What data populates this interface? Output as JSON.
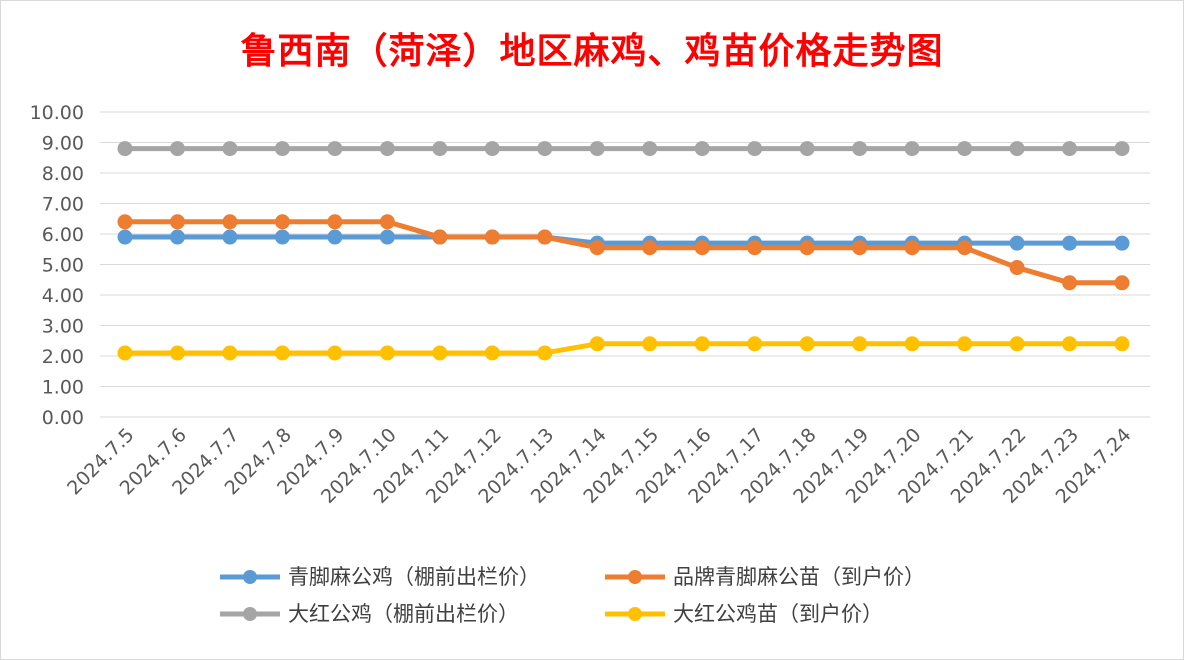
{
  "chart_data": {
    "type": "line",
    "title": "鲁西南（菏泽）地区麻鸡、鸡苗价格走势图",
    "xlabel": "",
    "ylabel": "",
    "ylim": [
      0,
      10
    ],
    "yticks": [
      "0.00",
      "1.00",
      "2.00",
      "3.00",
      "4.00",
      "5.00",
      "6.00",
      "7.00",
      "8.00",
      "9.00",
      "10.00"
    ],
    "grid": true,
    "legend_position": "bottom",
    "categories": [
      "2024.7.5",
      "2024.7.6",
      "2024.7.7",
      "2024.7.8",
      "2024.7.9",
      "2024.7.10",
      "2024.7.11",
      "2024.7.12",
      "2024.7.13",
      "2024.7.14",
      "2024.7.15",
      "2024.7.16",
      "2024.7.17",
      "2024.7.18",
      "2024.7.19",
      "2024.7.20",
      "2024.7.21",
      "2024.7.22",
      "2024.7.23",
      "2024.7.24"
    ],
    "series": [
      {
        "name": "青脚麻公鸡（棚前出栏价）",
        "color": "#5b9bd5",
        "values": [
          5.9,
          5.9,
          5.9,
          5.9,
          5.9,
          5.9,
          5.9,
          5.9,
          5.9,
          5.7,
          5.7,
          5.7,
          5.7,
          5.7,
          5.7,
          5.7,
          5.7,
          5.7,
          5.7,
          5.7
        ]
      },
      {
        "name": "品牌青脚麻公苗（到户价）",
        "color": "#ed7d31",
        "values": [
          6.4,
          6.4,
          6.4,
          6.4,
          6.4,
          6.4,
          5.9,
          5.9,
          5.9,
          5.55,
          5.55,
          5.55,
          5.55,
          5.55,
          5.55,
          5.55,
          5.55,
          4.9,
          4.4,
          4.4
        ]
      },
      {
        "name": "大红公鸡（棚前出栏价）",
        "color": "#a5a5a5",
        "values": [
          8.8,
          8.8,
          8.8,
          8.8,
          8.8,
          8.8,
          8.8,
          8.8,
          8.8,
          8.8,
          8.8,
          8.8,
          8.8,
          8.8,
          8.8,
          8.8,
          8.8,
          8.8,
          8.8,
          8.8
        ]
      },
      {
        "name": "大红公鸡苗（到户价）",
        "color": "#ffc000",
        "values": [
          2.1,
          2.1,
          2.1,
          2.1,
          2.1,
          2.1,
          2.1,
          2.1,
          2.1,
          2.4,
          2.4,
          2.4,
          2.4,
          2.4,
          2.4,
          2.4,
          2.4,
          2.4,
          2.4,
          2.4
        ]
      }
    ]
  }
}
